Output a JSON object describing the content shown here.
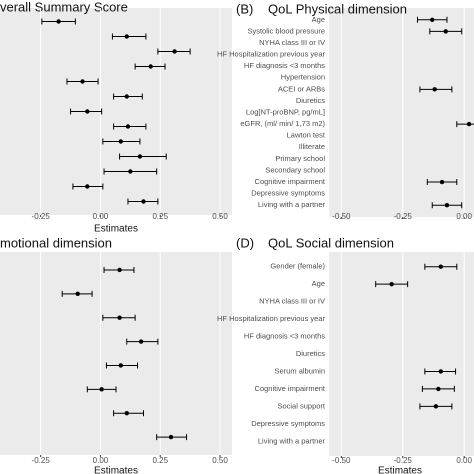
{
  "chart_data": [
    {
      "type": "forest",
      "title": "verall Summary Score",
      "categories": [
        null,
        null,
        null,
        null,
        null,
        null,
        null,
        null,
        null,
        null,
        null,
        null,
        null
      ],
      "values": [
        -0.175,
        0.11,
        0.31,
        0.21,
        -0.075,
        0.11,
        -0.055,
        0.115,
        0.085,
        0.165,
        0.125,
        -0.055,
        0.18
      ],
      "ci_low": [
        -0.245,
        0.05,
        0.24,
        0.145,
        -0.14,
        0.055,
        -0.125,
        0.055,
        0.01,
        0.08,
        0.015,
        -0.115,
        0.115
      ],
      "ci_high": [
        -0.105,
        0.19,
        0.375,
        0.27,
        -0.01,
        0.175,
        0.005,
        0.19,
        0.165,
        0.275,
        0.235,
        0.01,
        0.24
      ],
      "xlim": [
        -0.42,
        0.55
      ],
      "xticks": [
        -0.25,
        {
          "value": 0,
          "label": "0.00"
        },
        0.25,
        {
          "value": 0.5,
          "label": "0.50"
        }
      ],
      "xlabel": "Estimates"
    },
    {
      "type": "forest",
      "tag": "(B)",
      "title": "QoL Physical dimension",
      "categories": [
        "Age",
        "Systolic blood pressure",
        "NYHA class III or IV",
        "HF Hospitalization previous year",
        "HF diagnosis <3 months",
        "Hypertension",
        "ACEI or ARBs",
        "Diuretics",
        "Log[NT-proBNP, pg/mL]",
        "eGFR, (ml/ min/ 1,73 m2)",
        "Lawton test",
        "Illiterate",
        "Primary school",
        "Secondary school",
        "Cognitive impairment",
        "Depressive symptoms",
        "Living with a partner"
      ],
      "values": [
        -0.13,
        -0.075,
        null,
        null,
        null,
        null,
        -0.12,
        null,
        null,
        0.02,
        null,
        null,
        null,
        null,
        -0.09,
        null,
        -0.07
      ],
      "ci_low": [
        -0.19,
        -0.14,
        null,
        null,
        null,
        null,
        -0.18,
        null,
        null,
        -0.03,
        null,
        null,
        null,
        null,
        -0.15,
        null,
        -0.13
      ],
      "ci_high": [
        -0.07,
        -0.01,
        null,
        null,
        null,
        null,
        -0.05,
        null,
        null,
        0.07,
        null,
        null,
        null,
        null,
        -0.03,
        null,
        -0.01
      ],
      "xlim": [
        -0.55,
        0.04
      ],
      "xticks": [
        {
          "value": -0.5,
          "label": "-0.50"
        },
        -0.25,
        {
          "value": 0,
          "label": "0.00"
        }
      ]
    },
    {
      "type": "forest",
      "title": "motional dimension",
      "categories": [
        null,
        null,
        null,
        null,
        null,
        null,
        null,
        null
      ],
      "values": [
        0.08,
        -0.095,
        0.08,
        0.17,
        0.085,
        0.005,
        0.11,
        0.295
      ],
      "ci_low": [
        0.015,
        -0.16,
        0.01,
        0.11,
        0.025,
        -0.055,
        0.055,
        0.235
      ],
      "ci_high": [
        0.14,
        -0.035,
        0.145,
        0.24,
        0.155,
        0.065,
        0.18,
        0.36
      ],
      "xlim": [
        -0.42,
        0.55
      ],
      "xticks": [
        -0.25,
        {
          "value": 0,
          "label": "0.00"
        },
        0.25,
        {
          "value": 0.5,
          "label": "0.50"
        }
      ],
      "xlabel": "Estimates"
    },
    {
      "type": "forest",
      "tag": "(D)",
      "title": "QoL Social dimension",
      "categories": [
        "Gender (female)",
        "Age",
        "NYHA class III or IV",
        "HF Hospitalization previous year",
        "HF diagnosis <3 months",
        "Diuretics",
        "Serum albumin",
        "Cognitive impairment",
        "Social support",
        "Depressive symptoms",
        "Living with a partner"
      ],
      "values": [
        -0.095,
        -0.295,
        null,
        null,
        null,
        null,
        -0.095,
        -0.105,
        -0.115,
        null,
        null
      ],
      "ci_low": [
        -0.16,
        -0.36,
        null,
        null,
        null,
        null,
        -0.16,
        -0.17,
        -0.18,
        null,
        null
      ],
      "ci_high": [
        -0.03,
        -0.23,
        null,
        null,
        null,
        null,
        -0.035,
        -0.04,
        -0.05,
        null,
        null
      ],
      "xlim": [
        -0.55,
        0.04
      ],
      "xticks": [
        {
          "value": -0.5,
          "label": "-0.50"
        },
        -0.25,
        {
          "value": 0,
          "label": "0.00"
        }
      ],
      "xlabel": "Estimates"
    }
  ]
}
